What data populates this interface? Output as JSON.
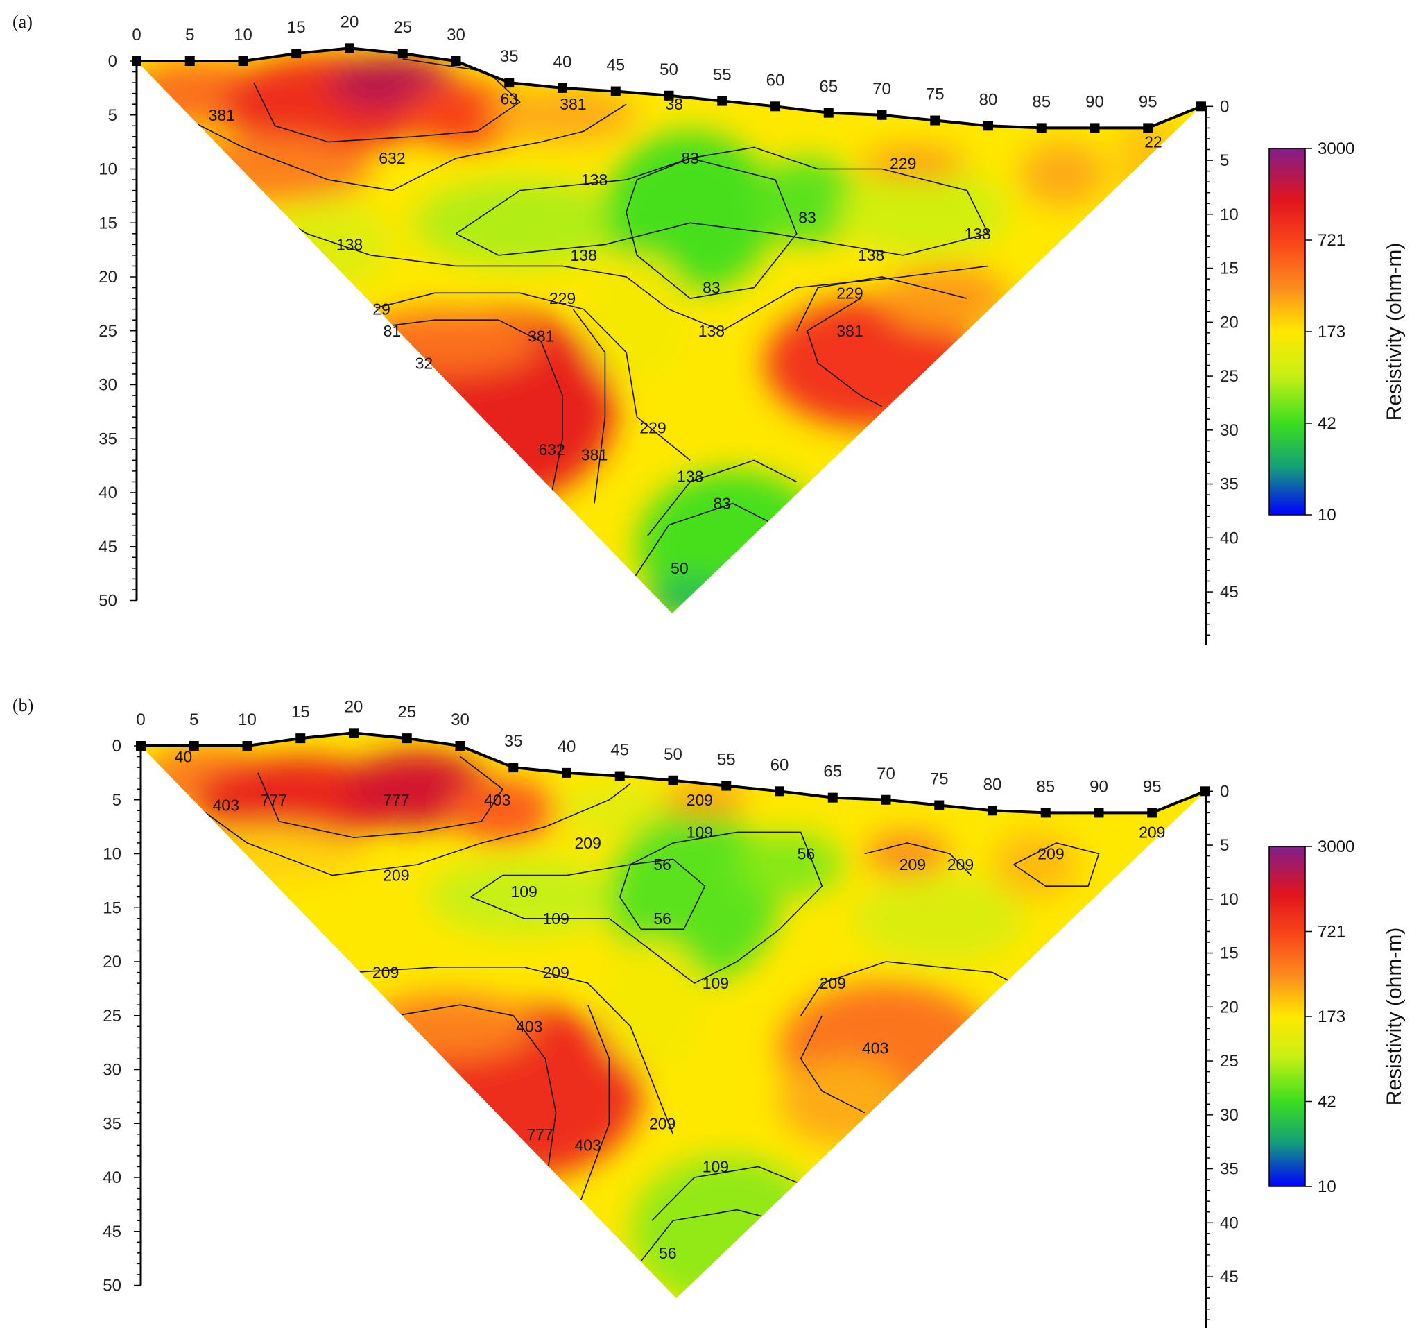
{
  "chart_data": [
    {
      "panel_label": "(a)",
      "type": "heatmap",
      "x_ticks": [
        0,
        5,
        10,
        15,
        20,
        25,
        30,
        35,
        40,
        45,
        50,
        55,
        60,
        65,
        70,
        75,
        80,
        85,
        90,
        95
      ],
      "y_ticks_left": [
        0,
        5,
        10,
        15,
        20,
        25,
        30,
        35,
        40,
        45,
        50
      ],
      "y_ticks_right": [
        0,
        5,
        10,
        15,
        20,
        25,
        30,
        35,
        40,
        45
      ],
      "ylim_left": [
        0,
        50
      ],
      "surface_elevation": [
        [
          0,
          0
        ],
        [
          5,
          0
        ],
        [
          10,
          0
        ],
        [
          15,
          -0.7
        ],
        [
          20,
          -1.2
        ],
        [
          25,
          -0.7
        ],
        [
          30,
          0
        ],
        [
          35,
          2
        ],
        [
          40,
          2.5
        ],
        [
          45,
          2.8
        ],
        [
          50,
          3.2
        ],
        [
          55,
          3.7
        ],
        [
          60,
          4.2
        ],
        [
          65,
          4.8
        ],
        [
          70,
          5
        ],
        [
          75,
          5.5
        ],
        [
          80,
          6
        ],
        [
          85,
          6.2
        ],
        [
          90,
          6.2
        ],
        [
          95,
          6.2
        ],
        [
          100,
          4.2
        ]
      ],
      "contour_levels": [
        "50",
        "83",
        "138",
        "229",
        "381",
        "632"
      ],
      "contour_labels": [
        {
          "text": "381",
          "x": 8,
          "y": 5
        },
        {
          "text": "632",
          "x": 24,
          "y": 9
        },
        {
          "text": "63",
          "x": 35,
          "y": 3.5
        },
        {
          "text": "381",
          "x": 41,
          "y": 4
        },
        {
          "text": "38",
          "x": 50.5,
          "y": 4
        },
        {
          "text": "138",
          "x": 43,
          "y": 11
        },
        {
          "text": "83",
          "x": 52,
          "y": 9
        },
        {
          "text": "229",
          "x": 72,
          "y": 9.5
        },
        {
          "text": "22",
          "x": 95.5,
          "y": 7.5
        },
        {
          "text": "138",
          "x": 20,
          "y": 17
        },
        {
          "text": "138",
          "x": 42,
          "y": 18
        },
        {
          "text": "83",
          "x": 63,
          "y": 14.5
        },
        {
          "text": "138",
          "x": 69,
          "y": 18
        },
        {
          "text": "138",
          "x": 79,
          "y": 16
        },
        {
          "text": "83",
          "x": 54,
          "y": 21
        },
        {
          "text": "229",
          "x": 40,
          "y": 22
        },
        {
          "text": "229",
          "x": 67,
          "y": 21.5
        },
        {
          "text": "29",
          "x": 23,
          "y": 23
        },
        {
          "text": "81",
          "x": 24,
          "y": 25
        },
        {
          "text": "381",
          "x": 38,
          "y": 25.5
        },
        {
          "text": "381",
          "x": 67,
          "y": 25
        },
        {
          "text": "138",
          "x": 54,
          "y": 25
        },
        {
          "text": "32",
          "x": 27,
          "y": 28
        },
        {
          "text": "632",
          "x": 39,
          "y": 36
        },
        {
          "text": "381",
          "x": 43,
          "y": 36.5
        },
        {
          "text": "229",
          "x": 48.5,
          "y": 34
        },
        {
          "text": "138",
          "x": 52,
          "y": 38.5
        },
        {
          "text": "83",
          "x": 55,
          "y": 41
        },
        {
          "text": "50",
          "x": 51,
          "y": 47
        }
      ]
    },
    {
      "panel_label": "(b)",
      "type": "heatmap",
      "x_ticks": [
        0,
        5,
        10,
        15,
        20,
        25,
        30,
        35,
        40,
        45,
        50,
        55,
        60,
        65,
        70,
        75,
        80,
        85,
        90,
        95
      ],
      "y_ticks_left": [
        0,
        5,
        10,
        15,
        20,
        25,
        30,
        35,
        40,
        45,
        50
      ],
      "y_ticks_right": [
        0,
        5,
        10,
        15,
        20,
        25,
        30,
        35,
        40,
        45
      ],
      "ylim_left": [
        0,
        50
      ],
      "surface_elevation": [
        [
          0,
          0
        ],
        [
          5,
          0
        ],
        [
          10,
          0
        ],
        [
          15,
          -0.7
        ],
        [
          20,
          -1.2
        ],
        [
          25,
          -0.7
        ],
        [
          30,
          0
        ],
        [
          35,
          2
        ],
        [
          40,
          2.5
        ],
        [
          45,
          2.8
        ],
        [
          50,
          3.2
        ],
        [
          55,
          3.7
        ],
        [
          60,
          4.2
        ],
        [
          65,
          4.8
        ],
        [
          70,
          5
        ],
        [
          75,
          5.5
        ],
        [
          80,
          6
        ],
        [
          85,
          6.2
        ],
        [
          90,
          6.2
        ],
        [
          95,
          6.2
        ],
        [
          100,
          4.2
        ]
      ],
      "contour_levels": [
        "56",
        "109",
        "209",
        "403",
        "777"
      ],
      "contour_labels": [
        {
          "text": "40",
          "x": 4,
          "y": 1
        },
        {
          "text": "403",
          "x": 8,
          "y": 5.5
        },
        {
          "text": "777",
          "x": 12.5,
          "y": 5
        },
        {
          "text": "777",
          "x": 24,
          "y": 5
        },
        {
          "text": "403",
          "x": 33.5,
          "y": 5
        },
        {
          "text": "209",
          "x": 52.5,
          "y": 5
        },
        {
          "text": "109",
          "x": 52.5,
          "y": 8
        },
        {
          "text": "209",
          "x": 42,
          "y": 9
        },
        {
          "text": "56",
          "x": 49,
          "y": 11
        },
        {
          "text": "56",
          "x": 62.5,
          "y": 10
        },
        {
          "text": "209",
          "x": 72.5,
          "y": 11
        },
        {
          "text": "209",
          "x": 77,
          "y": 11
        },
        {
          "text": "209",
          "x": 85.5,
          "y": 10
        },
        {
          "text": "209",
          "x": 95,
          "y": 8
        },
        {
          "text": "209",
          "x": 24,
          "y": 12
        },
        {
          "text": "109",
          "x": 36,
          "y": 13.5
        },
        {
          "text": "109",
          "x": 39,
          "y": 16
        },
        {
          "text": "56",
          "x": 49,
          "y": 16
        },
        {
          "text": "209",
          "x": 23,
          "y": 21
        },
        {
          "text": "209",
          "x": 39,
          "y": 21
        },
        {
          "text": "109",
          "x": 54,
          "y": 22
        },
        {
          "text": "209",
          "x": 65,
          "y": 22
        },
        {
          "text": "403",
          "x": 36.5,
          "y": 26
        },
        {
          "text": "403",
          "x": 69,
          "y": 28
        },
        {
          "text": "777",
          "x": 37.5,
          "y": 36
        },
        {
          "text": "403",
          "x": 42,
          "y": 37
        },
        {
          "text": "209",
          "x": 49,
          "y": 35
        },
        {
          "text": "109",
          "x": 54,
          "y": 39
        },
        {
          "text": "56",
          "x": 49.5,
          "y": 47
        }
      ]
    }
  ],
  "colorbar": {
    "ticks": [
      "3000",
      "721",
      "173",
      "42",
      "10"
    ],
    "title": "Resistivity (ohm-m)",
    "colors": [
      "#7b1f8c",
      "#e61919",
      "#ffff00",
      "#22e022",
      "#0000ff"
    ]
  }
}
